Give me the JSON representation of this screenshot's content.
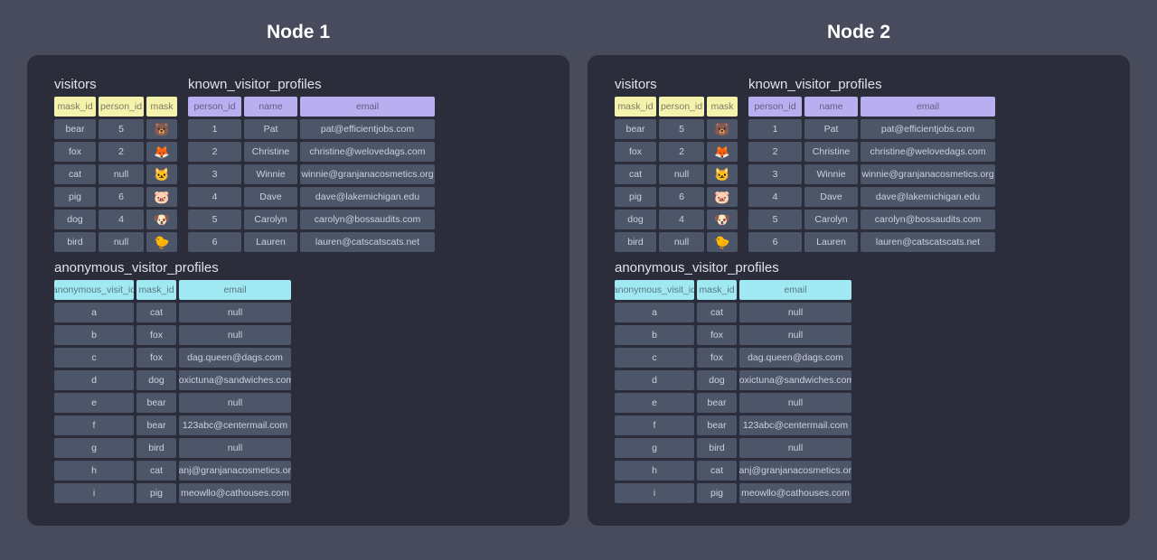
{
  "nodes": [
    {
      "title": "Node 1"
    },
    {
      "title": "Node 2"
    }
  ],
  "colors": {
    "page_background": "#474b5c",
    "panel_background": "#2b2e3a",
    "cell_background": "#4d5569",
    "visitors_header": "#f5f3ab",
    "known_header": "#b8aef0",
    "anonymous_header": "#a0e9f2",
    "title_text": "#ffffff",
    "cell_text": "#ccd1db"
  },
  "tables": {
    "visitors": {
      "title": "visitors",
      "header_color": "#f5f3ab",
      "columns": [
        "mask_id",
        "person_id",
        "mask"
      ],
      "rows": [
        [
          "bear",
          "5",
          "🐻"
        ],
        [
          "fox",
          "2",
          "🦊"
        ],
        [
          "cat",
          "null",
          "🐱"
        ],
        [
          "pig",
          "6",
          "🐷"
        ],
        [
          "dog",
          "4",
          "🐶"
        ],
        [
          "bird",
          "null",
          "🐤"
        ]
      ]
    },
    "known_visitor_profiles": {
      "title": "known_visitor_profiles",
      "header_color": "#b8aef0",
      "columns": [
        "person_id",
        "name",
        "email"
      ],
      "rows": [
        [
          "1",
          "Pat",
          "pat@efficientjobs.com"
        ],
        [
          "2",
          "Christine",
          "christine@welovedags.com"
        ],
        [
          "3",
          "Winnie",
          "winnie@granjanacosmetics.org"
        ],
        [
          "4",
          "Dave",
          "dave@lakemichigan.edu"
        ],
        [
          "5",
          "Carolyn",
          "carolyn@bossaudits.com"
        ],
        [
          "6",
          "Lauren",
          "lauren@catscatscats.net"
        ]
      ]
    },
    "anonymous_visitor_profiles": {
      "title": "anonymous_visitor_profiles",
      "header_color": "#a0e9f2",
      "columns": [
        "anonymous_visit_id",
        "mask_id",
        "email"
      ],
      "rows": [
        [
          "a",
          "cat",
          "null"
        ],
        [
          "b",
          "fox",
          "null"
        ],
        [
          "c",
          "fox",
          "dag.queen@dags.com"
        ],
        [
          "d",
          "dog",
          "toxictuna@sandwiches.com"
        ],
        [
          "e",
          "bear",
          "null"
        ],
        [
          "f",
          "bear",
          "123abc@centermail.com"
        ],
        [
          "g",
          "bird",
          "null"
        ],
        [
          "h",
          "cat",
          "sanj@granjanacosmetics.org"
        ],
        [
          "i",
          "pig",
          "meowllo@cathouses.com"
        ]
      ]
    }
  }
}
